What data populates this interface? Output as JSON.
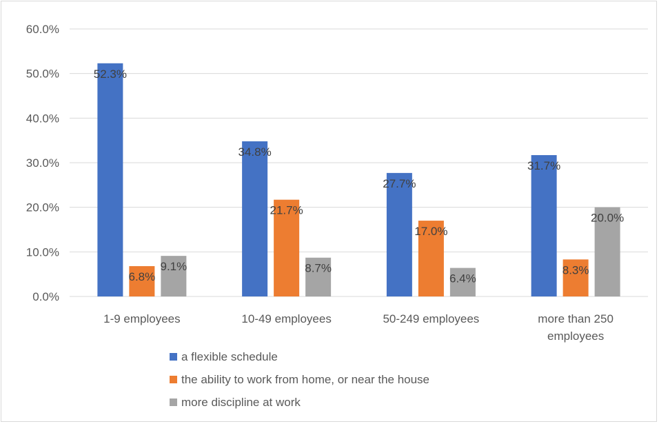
{
  "chart_data": {
    "type": "bar",
    "title": "",
    "xlabel": "",
    "ylabel": "",
    "categories": [
      [
        "1-9 employees"
      ],
      [
        "10-49 employees"
      ],
      [
        "50-249 employees"
      ],
      [
        "more than 250",
        "employees"
      ]
    ],
    "series": [
      {
        "name": "a flexible schedule",
        "values": [
          52.3,
          34.8,
          27.7,
          31.7
        ],
        "labels": [
          "52.3%",
          "34.8%",
          "27.7%",
          "31.7%"
        ],
        "color": "#4472c4"
      },
      {
        "name": "the ability to work from home, or near the house",
        "values": [
          6.8,
          21.7,
          17.0,
          8.3
        ],
        "labels": [
          "6.8%",
          "21.7%",
          "17.0%",
          "8.3%"
        ],
        "color": "#ed7d31"
      },
      {
        "name": "more discipline at work",
        "values": [
          9.1,
          8.7,
          6.4,
          20.0
        ],
        "labels": [
          "9.1%",
          "8.7%",
          "6.4%",
          "20.0%"
        ],
        "color": "#a5a5a5"
      }
    ],
    "ylim": [
      0,
      60
    ],
    "yticks": [
      0,
      10,
      20,
      30,
      40,
      50,
      60
    ],
    "ytick_labels": [
      "0.0%",
      "10.0%",
      "20.0%",
      "30.0%",
      "40.0%",
      "50.0%",
      "60.0%"
    ],
    "grid": true,
    "gridline_color": "#d9d9d9",
    "legend_position": "bottom"
  }
}
